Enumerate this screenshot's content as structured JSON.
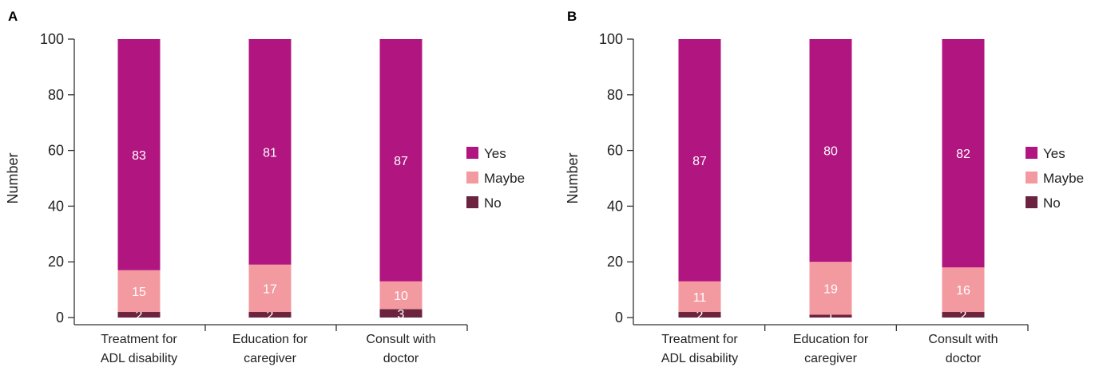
{
  "chart_data": [
    {
      "type": "bar",
      "stacked": true,
      "panel_label": "A",
      "ylabel": "Number",
      "ylim": [
        0,
        100
      ],
      "yticks": [
        0,
        20,
        40,
        60,
        80,
        100
      ],
      "categories": [
        [
          "Treatment for",
          "ADL disability"
        ],
        [
          "Education for",
          "caregiver"
        ],
        [
          "Consult with",
          "doctor"
        ]
      ],
      "series": [
        {
          "name": "No",
          "color": "#6b2340",
          "values": [
            2,
            2,
            3
          ]
        },
        {
          "name": "Maybe",
          "color": "#f39aa0",
          "values": [
            15,
            17,
            10
          ]
        },
        {
          "name": "Yes",
          "color": "#b01580",
          "values": [
            83,
            81,
            87
          ]
        }
      ],
      "legend": [
        "Yes",
        "Maybe",
        "No"
      ],
      "legend_position": "right"
    },
    {
      "type": "bar",
      "stacked": true,
      "panel_label": "B",
      "ylabel": "Number",
      "ylim": [
        0,
        100
      ],
      "yticks": [
        0,
        20,
        40,
        60,
        80,
        100
      ],
      "categories": [
        [
          "Treatment for",
          "ADL disability"
        ],
        [
          "Education for",
          "caregiver"
        ],
        [
          "Consult with",
          "doctor"
        ]
      ],
      "series": [
        {
          "name": "No",
          "color": "#6b2340",
          "values": [
            2,
            1,
            2
          ]
        },
        {
          "name": "Maybe",
          "color": "#f39aa0",
          "values": [
            11,
            19,
            16
          ]
        },
        {
          "name": "Yes",
          "color": "#b01580",
          "values": [
            87,
            80,
            82
          ]
        }
      ],
      "legend": [
        "Yes",
        "Maybe",
        "No"
      ],
      "legend_position": "right"
    }
  ]
}
